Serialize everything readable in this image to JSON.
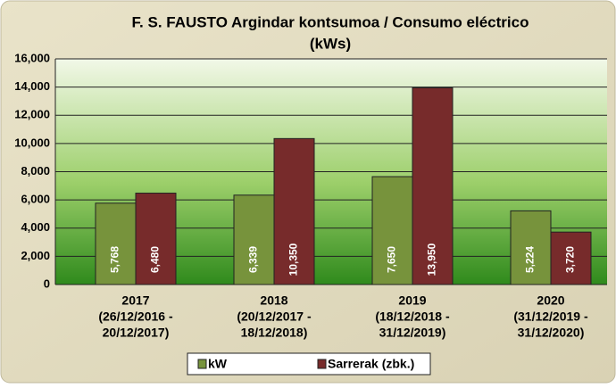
{
  "chart_data": {
    "type": "bar",
    "title": [
      "F. S. FAUSTO Argindar kontsumoa / Consumo eléctrico",
      "(kWs)"
    ],
    "categories": [
      [
        "2017",
        "(26/12/2016 -",
        "20/12/2017)"
      ],
      [
        "2018",
        "(20/12/2017 -",
        "18/12/2018)"
      ],
      [
        "2019",
        "(18/12/2018 -",
        "31/12/2019)"
      ],
      [
        "2020",
        "(31/12/2019 -",
        "31/12/2020)"
      ]
    ],
    "series": [
      {
        "name": "kW",
        "color": "#77933c",
        "values": [
          5768,
          6339,
          7650,
          5224
        ],
        "value_labels": [
          "5,768",
          "6,339",
          "7,650",
          "5,224"
        ]
      },
      {
        "name": "Sarrerak (zbk.)",
        "color": "#772b2b",
        "values": [
          6480,
          10350,
          13950,
          3720
        ],
        "value_labels": [
          "6,480",
          "10,350",
          "13,950",
          "3,720"
        ]
      }
    ],
    "ylim": [
      0,
      16000
    ],
    "yticks": [
      0,
      {
        "value": 2000,
        "label": "2,000"
      },
      {
        "value": 4000,
        "label": "4,000"
      },
      {
        "value": 6000,
        "label": "6,000"
      },
      {
        "value": 8000,
        "label": "8,000"
      },
      {
        "value": 10000,
        "label": "10,000"
      },
      {
        "value": 12000,
        "label": "12,000"
      },
      {
        "value": 14000,
        "label": "14,000"
      },
      {
        "value": 16000,
        "label": "16,000"
      }
    ],
    "grid": true,
    "legend": "bottom"
  }
}
